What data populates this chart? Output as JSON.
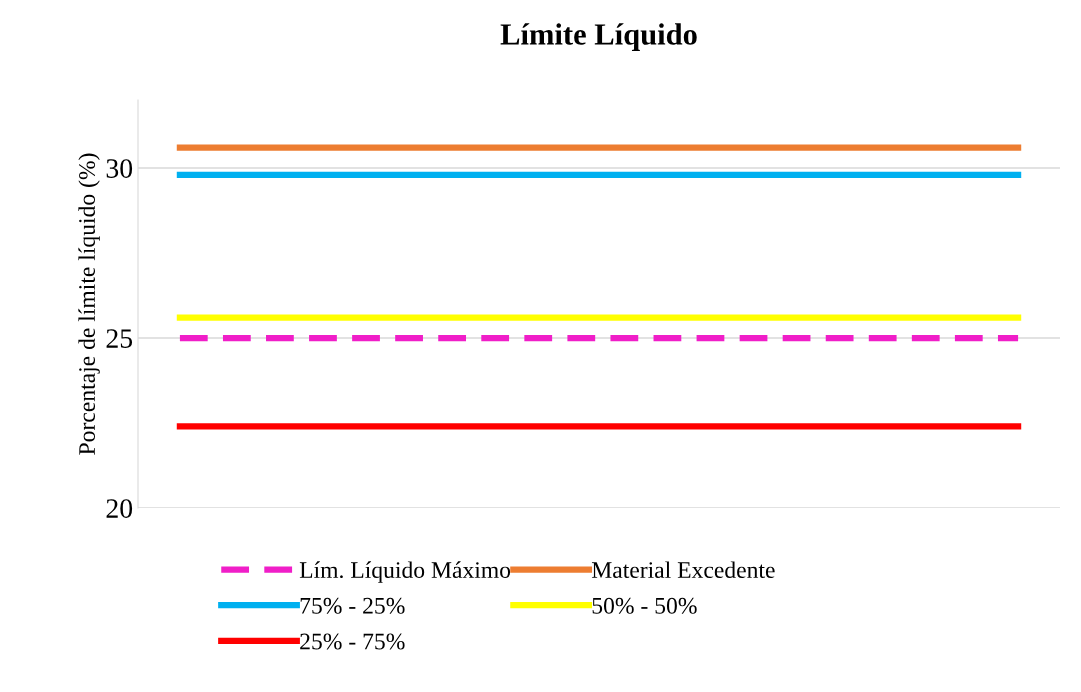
{
  "chart_data": {
    "type": "line",
    "title": "Límite Líquido",
    "ylabel": "Porcentaje de límite líquido (%)",
    "categories": [
      null,
      null,
      null,
      null,
      null,
      null,
      null,
      null,
      null,
      null,
      null
    ],
    "series": [
      {
        "name": "Lím. Líquido Máximo",
        "color": "#f01ec8",
        "line_style": "dashed",
        "values": [
          25,
          25,
          25,
          25,
          25,
          25,
          25,
          25,
          25,
          25,
          25
        ]
      },
      {
        "name": "Material Excedente",
        "color": "#ed7d31",
        "values": [
          30.6,
          30.6,
          30.6,
          30.6,
          30.6,
          30.6,
          30.6,
          30.6,
          30.6,
          30.6,
          30.6
        ]
      },
      {
        "name": "75% - 25%",
        "color": "#00b0f0",
        "values": [
          29.8,
          29.8,
          29.8,
          29.8,
          29.8,
          29.8,
          29.8,
          29.8,
          29.8,
          29.8,
          29.8
        ]
      },
      {
        "name": "50% - 50%",
        "color": "#ffff00",
        "values": [
          25.6,
          25.6,
          25.6,
          25.6,
          25.6,
          25.6,
          25.6,
          25.6,
          25.6,
          25.6,
          25.6
        ]
      },
      {
        "name": "25% - 75%",
        "color": "#ff0000",
        "values": [
          22.4,
          22.4,
          22.4,
          22.4,
          22.4,
          22.4,
          22.4,
          22.4,
          22.4,
          22.4,
          22.4
        ]
      }
    ],
    "ylim": [
      20,
      32
    ],
    "yticks": [
      20,
      25,
      30
    ],
    "grid": "y",
    "legend": "bottom",
    "line_style": "solid",
    "marker": "none"
  }
}
